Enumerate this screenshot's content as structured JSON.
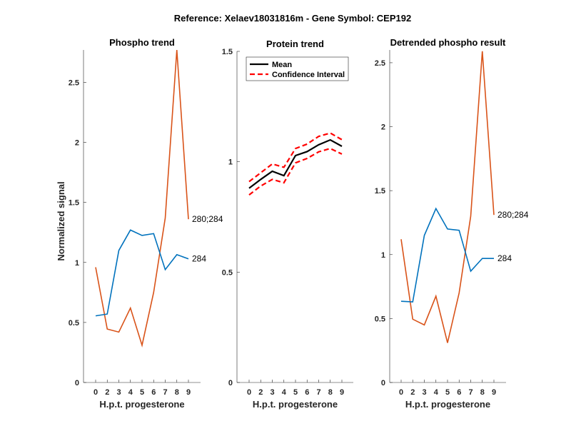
{
  "figure_title": "Reference:  Xelaev18031816m - Gene Symbol:  CEP192",
  "chart_data": [
    {
      "type": "line",
      "title": "Phospho trend",
      "xlabel": "H.p.t. progesterone",
      "ylabel": "Normalized signal",
      "categories": [
        "0",
        "2",
        "3",
        "4",
        "5",
        "6",
        "7",
        "8",
        "9"
      ],
      "ylim": [
        0,
        2.77
      ],
      "yticks": [
        0,
        0.5,
        1,
        1.5,
        2,
        2.5
      ],
      "ytick_labels": [
        "0",
        "0.5",
        "1",
        "1.5",
        "2",
        "2.5"
      ],
      "grid": false,
      "series": [
        {
          "name": "280;284",
          "color": "#D95319",
          "values": [
            0.96,
            0.445,
            0.42,
            0.62,
            0.31,
            0.75,
            1.37,
            2.77,
            1.36
          ]
        },
        {
          "name": "284",
          "color": "#0072BD",
          "values": [
            0.555,
            0.57,
            1.1,
            1.27,
            1.225,
            1.24,
            0.94,
            1.065,
            1.03
          ]
        }
      ],
      "annotations": [
        "280;284",
        "284"
      ]
    },
    {
      "type": "line",
      "title": "Protein trend",
      "xlabel": "H.p.t. progesterone",
      "ylabel": "",
      "categories": [
        "0",
        "2",
        "3",
        "4",
        "5",
        "6",
        "7",
        "8",
        "9"
      ],
      "ylim": [
        0,
        1.5
      ],
      "yticks": [
        0,
        0.5,
        1,
        1.5
      ],
      "ytick_labels": [
        "0",
        "0.5",
        "1",
        "1.5"
      ],
      "grid": false,
      "legend": {
        "placement": "top-left",
        "entries": [
          "Mean",
          "Confidence Interval"
        ]
      },
      "series": [
        {
          "name": "Mean",
          "color": "#000000",
          "style": "solid",
          "values": [
            0.88,
            0.92,
            0.957,
            0.937,
            1.028,
            1.046,
            1.077,
            1.099,
            1.07
          ]
        },
        {
          "name": "Confidence Interval (upper)",
          "color": "#FF0000",
          "style": "dashed",
          "values": [
            0.91,
            0.95,
            0.99,
            0.975,
            1.06,
            1.08,
            1.115,
            1.13,
            1.1
          ]
        },
        {
          "name": "Confidence Interval (lower)",
          "color": "#FF0000",
          "style": "dashed",
          "values": [
            0.85,
            0.89,
            0.92,
            0.905,
            0.995,
            1.015,
            1.045,
            1.06,
            1.035
          ]
        }
      ]
    },
    {
      "type": "line",
      "title": "Detrended phospho result",
      "xlabel": "H.p.t. progesterone",
      "ylabel": "",
      "categories": [
        "0",
        "2",
        "3",
        "4",
        "5",
        "6",
        "7",
        "8",
        "9"
      ],
      "ylim": [
        0,
        2.6
      ],
      "yticks": [
        0,
        0.5,
        1,
        1.5,
        2,
        2.5
      ],
      "ytick_labels": [
        "0",
        "0.5",
        "1",
        "1.5",
        "2",
        "2.5"
      ],
      "grid": false,
      "series": [
        {
          "name": "280;284",
          "color": "#D95319",
          "values": [
            1.12,
            0.495,
            0.45,
            0.675,
            0.31,
            0.7,
            1.3,
            2.59,
            1.31
          ]
        },
        {
          "name": "284",
          "color": "#0072BD",
          "values": [
            0.635,
            0.63,
            1.15,
            1.36,
            1.2,
            1.19,
            0.87,
            0.97,
            0.97
          ]
        }
      ],
      "annotations": [
        "280;284",
        "284"
      ]
    }
  ]
}
